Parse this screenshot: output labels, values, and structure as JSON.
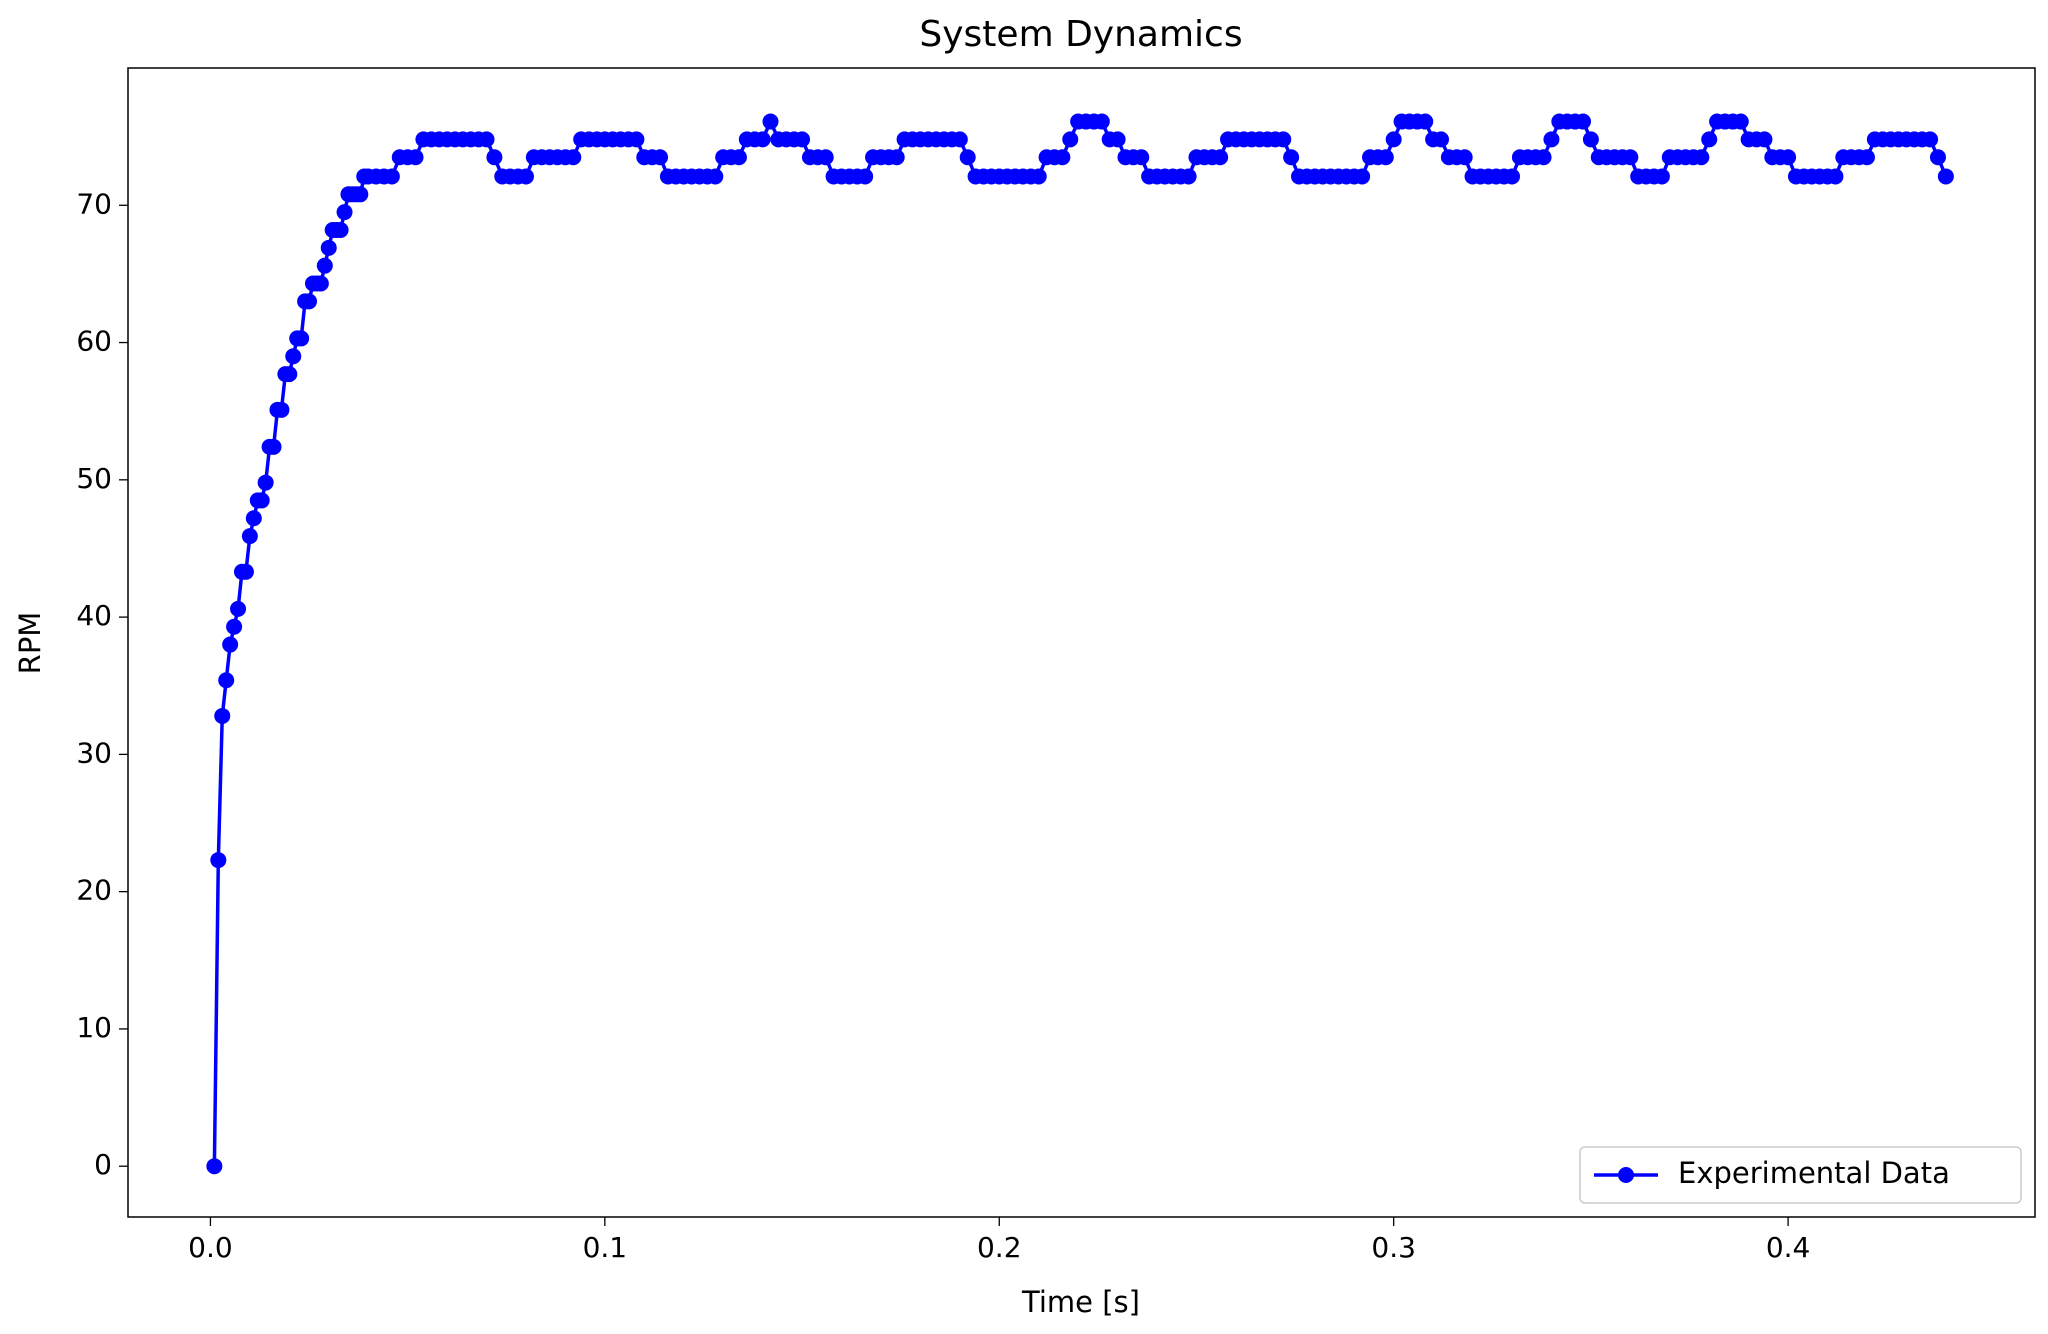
{
  "chart_data": {
    "type": "line",
    "title": "System Dynamics",
    "xlabel": "Time [s]",
    "ylabel": "RPM",
    "x": [
      0.001,
      0.002,
      0.003,
      0.004,
      0.005,
      0.006,
      0.007,
      0.008,
      0.009,
      0.01,
      0.011,
      0.012,
      0.013,
      0.014,
      0.015,
      0.016,
      0.017,
      0.018,
      0.019,
      0.02,
      0.021,
      0.022,
      0.023,
      0.024,
      0.025,
      0.026,
      0.027,
      0.028,
      0.029,
      0.03,
      0.031,
      0.032,
      0.033,
      0.034,
      0.035,
      0.036,
      0.037,
      0.038,
      0.039,
      0.04,
      0.042,
      0.044,
      0.046,
      0.048,
      0.05,
      0.052,
      0.054,
      0.056,
      0.058,
      0.06,
      0.062,
      0.064,
      0.066,
      0.068,
      0.07,
      0.072,
      0.074,
      0.076,
      0.078,
      0.08,
      0.082,
      0.084,
      0.086,
      0.088,
      0.09,
      0.092,
      0.094,
      0.096,
      0.098,
      0.1,
      0.102,
      0.104,
      0.106,
      0.108,
      0.11,
      0.112,
      0.114,
      0.116,
      0.118,
      0.12,
      0.122,
      0.124,
      0.126,
      0.128,
      0.13,
      0.132,
      0.134,
      0.136,
      0.138,
      0.14,
      0.142,
      0.144,
      0.146,
      0.148,
      0.15,
      0.152,
      0.154,
      0.156,
      0.158,
      0.16,
      0.162,
      0.164,
      0.166,
      0.168,
      0.17,
      0.172,
      0.174,
      0.176,
      0.178,
      0.18,
      0.182,
      0.184,
      0.186,
      0.188,
      0.19,
      0.192,
      0.194,
      0.196,
      0.198,
      0.2,
      0.202,
      0.204,
      0.206,
      0.208,
      0.21,
      0.212,
      0.214,
      0.216,
      0.218,
      0.22,
      0.222,
      0.224,
      0.226,
      0.228,
      0.23,
      0.232,
      0.234,
      0.236,
      0.238,
      0.24,
      0.242,
      0.244,
      0.246,
      0.248,
      0.25,
      0.252,
      0.254,
      0.256,
      0.258,
      0.26,
      0.262,
      0.264,
      0.266,
      0.268,
      0.27,
      0.272,
      0.274,
      0.276,
      0.278,
      0.28,
      0.282,
      0.284,
      0.286,
      0.288,
      0.29,
      0.292,
      0.294,
      0.296,
      0.298,
      0.3,
      0.302,
      0.304,
      0.306,
      0.308,
      0.31,
      0.312,
      0.314,
      0.316,
      0.318,
      0.32,
      0.322,
      0.324,
      0.326,
      0.328,
      0.33,
      0.332,
      0.334,
      0.336,
      0.338,
      0.34,
      0.342,
      0.344,
      0.346,
      0.348,
      0.35,
      0.352,
      0.354,
      0.356,
      0.358,
      0.36,
      0.362,
      0.364,
      0.366,
      0.368,
      0.37,
      0.372,
      0.374,
      0.376,
      0.378,
      0.38,
      0.382,
      0.384,
      0.386,
      0.388,
      0.39,
      0.392,
      0.394,
      0.396,
      0.398,
      0.4,
      0.402,
      0.404,
      0.406,
      0.408,
      0.41,
      0.412,
      0.414,
      0.416,
      0.418,
      0.42,
      0.422,
      0.424,
      0.426,
      0.428,
      0.43,
      0.432,
      0.434,
      0.436,
      0.438,
      0.44
    ],
    "series": [
      {
        "name": "Experimental Data",
        "color": "#0000ff",
        "values": [
          0,
          22.3,
          32.8,
          35.4,
          38.0,
          39.3,
          40.6,
          43.3,
          43.3,
          45.9,
          47.2,
          48.5,
          48.5,
          49.8,
          52.4,
          52.4,
          55.1,
          55.1,
          57.7,
          57.7,
          59.0,
          60.3,
          60.3,
          63.0,
          63.0,
          64.3,
          64.3,
          64.3,
          65.6,
          66.9,
          68.2,
          68.2,
          68.2,
          69.5,
          70.8,
          70.8,
          70.8,
          70.8,
          72.1,
          72.1,
          72.1,
          72.1,
          72.1,
          73.5,
          73.5,
          73.5,
          74.8,
          74.8,
          74.8,
          74.8,
          74.8,
          74.8,
          74.8,
          74.8,
          74.8,
          73.5,
          72.1,
          72.1,
          72.1,
          72.1,
          73.5,
          73.5,
          73.5,
          73.5,
          73.5,
          73.5,
          74.8,
          74.8,
          74.8,
          74.8,
          74.8,
          74.8,
          74.8,
          74.8,
          73.5,
          73.5,
          73.5,
          72.1,
          72.1,
          72.1,
          72.1,
          72.1,
          72.1,
          72.1,
          73.5,
          73.5,
          73.5,
          74.8,
          74.8,
          74.8,
          76.1,
          74.8,
          74.8,
          74.8,
          74.8,
          73.5,
          73.5,
          73.5,
          72.1,
          72.1,
          72.1,
          72.1,
          72.1,
          73.5,
          73.5,
          73.5,
          73.5,
          74.8,
          74.8,
          74.8,
          74.8,
          74.8,
          74.8,
          74.8,
          74.8,
          73.5,
          72.1,
          72.1,
          72.1,
          72.1,
          72.1,
          72.1,
          72.1,
          72.1,
          72.1,
          73.5,
          73.5,
          73.5,
          74.8,
          76.1,
          76.1,
          76.1,
          76.1,
          74.8,
          74.8,
          73.5,
          73.5,
          73.5,
          72.1,
          72.1,
          72.1,
          72.1,
          72.1,
          72.1,
          73.5,
          73.5,
          73.5,
          73.5,
          74.8,
          74.8,
          74.8,
          74.8,
          74.8,
          74.8,
          74.8,
          74.8,
          73.5,
          72.1,
          72.1,
          72.1,
          72.1,
          72.1,
          72.1,
          72.1,
          72.1,
          72.1,
          73.5,
          73.5,
          73.5,
          74.8,
          76.1,
          76.1,
          76.1,
          76.1,
          74.8,
          74.8,
          73.5,
          73.5,
          73.5,
          72.1,
          72.1,
          72.1,
          72.1,
          72.1,
          72.1,
          73.5,
          73.5,
          73.5,
          73.5,
          74.8,
          76.1,
          76.1,
          76.1,
          76.1,
          74.8,
          73.5,
          73.5,
          73.5,
          73.5,
          73.5,
          72.1,
          72.1,
          72.1,
          72.1,
          73.5,
          73.5,
          73.5,
          73.5,
          73.5,
          74.8,
          76.1,
          76.1,
          76.1,
          76.1,
          74.8,
          74.8,
          74.8,
          73.5,
          73.5,
          73.5,
          72.1,
          72.1,
          72.1,
          72.1,
          72.1,
          72.1,
          73.5,
          73.5,
          73.5,
          73.5,
          74.8,
          74.8,
          74.8,
          74.8,
          74.8,
          74.8,
          74.8,
          74.8,
          73.5,
          72.1
        ]
      }
    ],
    "xlim": [
      -0.0209,
      0.4626
    ],
    "xticks": [
      {
        "value": 0,
        "label": "0.0"
      },
      0.1,
      0.2,
      0.3,
      0.4
    ],
    "ylim": [
      -3.7,
      80.0
    ],
    "yticks": [
      0,
      10,
      20,
      30,
      40,
      50,
      60,
      70
    ],
    "grid": false,
    "legend": "lower right"
  }
}
